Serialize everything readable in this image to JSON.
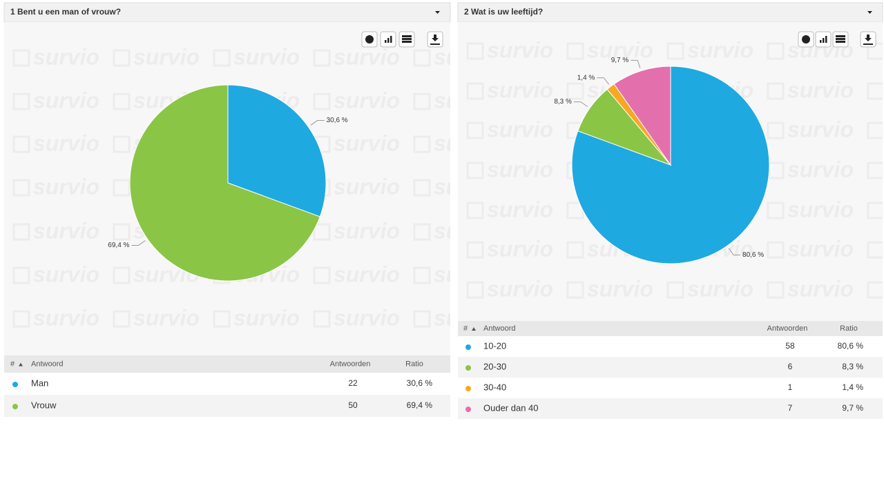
{
  "watermark": "survio",
  "chart_data": [
    {
      "type": "pie",
      "title": "1 Bent u een man of vrouw?",
      "categories": [
        "Man",
        "Vrouw"
      ],
      "values": [
        30.6,
        69.4
      ],
      "value_labels": [
        "30,6 %",
        "69,4 %"
      ],
      "colors": [
        "#1fa9e1",
        "#8bc546"
      ],
      "counts": [
        22,
        50
      ],
      "table_headers": [
        "#",
        "Antwoord",
        "Antwoorden",
        "Ratio"
      ]
    },
    {
      "type": "pie",
      "title": "2 Wat is uw leeftijd?",
      "categories": [
        "10-20",
        "20-30",
        "30-40",
        "Ouder dan 40"
      ],
      "values": [
        80.6,
        8.3,
        1.4,
        9.7
      ],
      "value_labels": [
        "80,6 %",
        "8,3 %",
        "1,4 %",
        "9,7 %"
      ],
      "colors": [
        "#1fa9e1",
        "#8bc546",
        "#f7a823",
        "#e46fad"
      ],
      "counts": [
        58,
        6,
        1,
        7
      ],
      "table_headers": [
        "#",
        "Antwoord",
        "Antwoorden",
        "Ratio"
      ]
    }
  ]
}
